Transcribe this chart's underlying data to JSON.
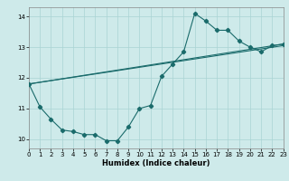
{
  "xlabel": "Humidex (Indice chaleur)",
  "xlim": [
    0,
    23
  ],
  "ylim": [
    9.7,
    14.3
  ],
  "yticks": [
    10,
    11,
    12,
    13,
    14
  ],
  "xticks": [
    0,
    1,
    2,
    3,
    4,
    5,
    6,
    7,
    8,
    9,
    10,
    11,
    12,
    13,
    14,
    15,
    16,
    17,
    18,
    19,
    20,
    21,
    22,
    23
  ],
  "bg_color": "#ceeaea",
  "line_color": "#1a6b6b",
  "line1_x": [
    0,
    1,
    2,
    3,
    4,
    5,
    6,
    7,
    8,
    9,
    10,
    11,
    12,
    13,
    14,
    15,
    16,
    17,
    18,
    19,
    20,
    21,
    22,
    23
  ],
  "line1_y": [
    11.8,
    11.05,
    10.65,
    10.3,
    10.25,
    10.15,
    10.15,
    9.95,
    9.95,
    10.4,
    11.0,
    11.1,
    12.05,
    12.45,
    12.85,
    14.1,
    13.85,
    13.55,
    13.55,
    13.2,
    13.0,
    12.85,
    13.05,
    13.1
  ],
  "line2_x": [
    0,
    23
  ],
  "line2_y": [
    11.8,
    13.05
  ],
  "line3_x": [
    0,
    23
  ],
  "line3_y": [
    11.8,
    13.1
  ]
}
